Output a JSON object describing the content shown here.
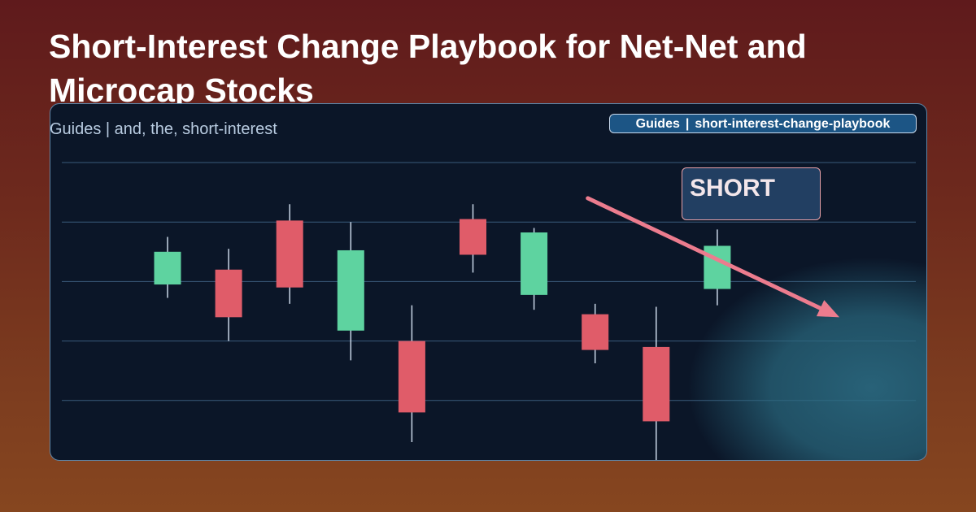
{
  "header": {
    "title": "Short-Interest Change Playbook for Net-Net and Microcap Stocks",
    "subtitle": "Guides | and, the, short-interest"
  },
  "tag": {
    "category": "Guides",
    "separator": "|",
    "slug": "short-interest-change-playbook"
  },
  "badge": {
    "label": "SHORT"
  },
  "colors": {
    "up": "#5ed3a0",
    "down": "#e05c69",
    "wick": "#c9d6e6",
    "grid": "#3a5a7a",
    "arrow": "#ec7c8e"
  },
  "chart_data": {
    "type": "candlestick",
    "title": "",
    "xlabel": "",
    "ylabel": "",
    "grid": true,
    "ylim": [
      0,
      100
    ],
    "candles": [
      {
        "open": 59.0,
        "close": 70.0,
        "high": 75.0,
        "low": 54.5
      },
      {
        "open": 64.0,
        "close": 48.0,
        "high": 71.0,
        "low": 40.0
      },
      {
        "open": 80.5,
        "close": 58.0,
        "high": 86.0,
        "low": 52.5
      },
      {
        "open": 43.5,
        "close": 70.5,
        "high": 80.0,
        "low": 33.5
      },
      {
        "open": 40.0,
        "close": 16.0,
        "high": 52.0,
        "low": 6.0
      },
      {
        "open": 81.0,
        "close": 69.0,
        "high": 86.0,
        "low": 63.0
      },
      {
        "open": 55.5,
        "close": 76.5,
        "high": 78.0,
        "low": 50.5
      },
      {
        "open": 49.0,
        "close": 37.0,
        "high": 52.5,
        "low": 32.5
      },
      {
        "open": 38.0,
        "close": 13.0,
        "high": 51.5,
        "low": -2.0
      },
      {
        "open": 57.5,
        "close": 72.0,
        "high": 77.5,
        "low": 52.0
      }
    ],
    "trend_arrow": {
      "direction": "down",
      "from": {
        "index": 6.88,
        "value": 88.0
      },
      "to": {
        "index": 11.0,
        "value": 48.0
      }
    }
  }
}
